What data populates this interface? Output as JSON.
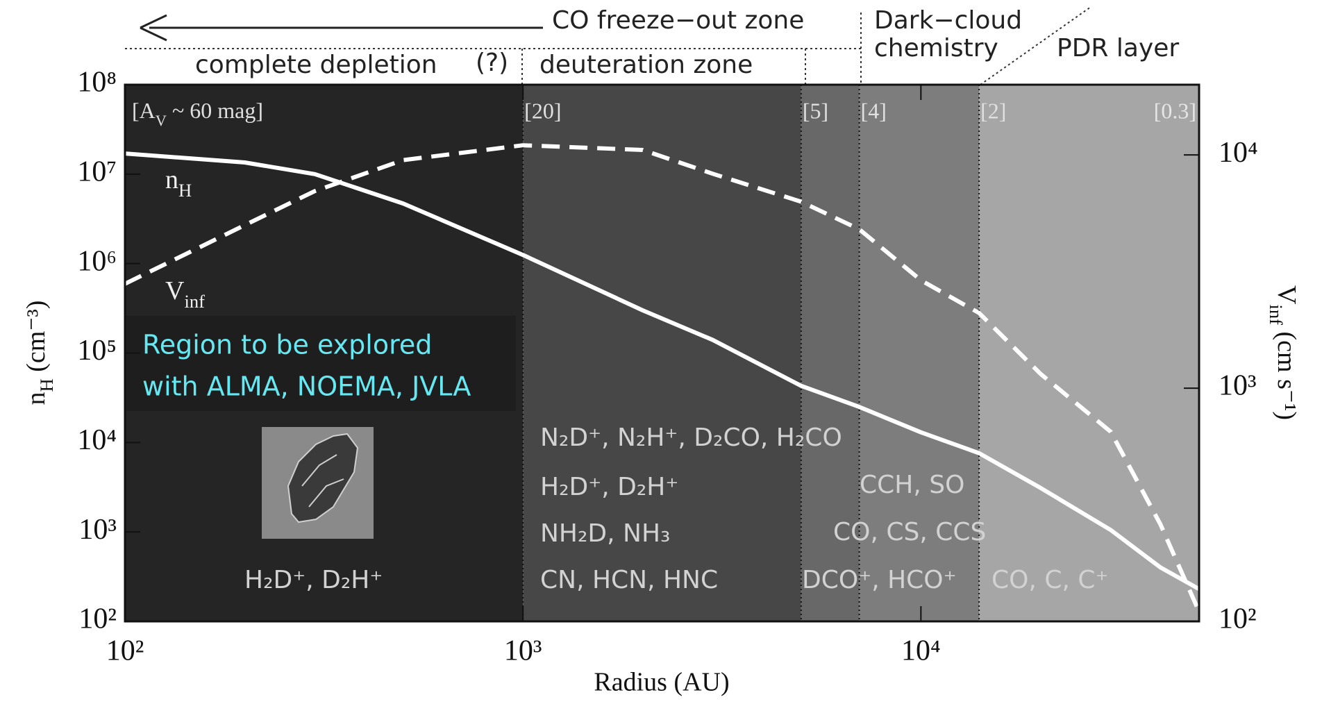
{
  "chart_data": {
    "type": "line",
    "xlabel": "Radius (AU)",
    "ylabel": [
      "n",
      "H",
      " (cm⁻³)"
    ],
    "y2label": [
      "V",
      "inf",
      " (cm s⁻¹)"
    ],
    "log_x": true,
    "log_y": true,
    "xlim": [
      100,
      50000
    ],
    "xticks": [
      {
        "value": 100,
        "label": "10²"
      },
      {
        "value": 1000,
        "label": "10³"
      },
      {
        "value": 10000,
        "label": "10⁴"
      }
    ],
    "ylim": [
      100,
      100000000
    ],
    "yticks": [
      {
        "value": 100,
        "label": "10²"
      },
      {
        "value": 1000,
        "label": "10³"
      },
      {
        "value": 10000,
        "label": "10⁴"
      },
      {
        "value": 100000,
        "label": "10⁵"
      },
      {
        "value": 1000000,
        "label": "10⁶"
      },
      {
        "value": 10000000,
        "label": "10⁷"
      },
      {
        "value": 100000000,
        "label": "10⁸"
      }
    ],
    "y2lim": [
      100,
      20000
    ],
    "y2ticks": [
      {
        "value": 100,
        "label": "10²"
      },
      {
        "value": 1000,
        "label": "10³"
      },
      {
        "value": 10000,
        "label": "10⁴"
      }
    ],
    "x": [
      100,
      200,
      300,
      500,
      1000,
      2000,
      3000,
      5000,
      7000,
      10000,
      14000,
      20000,
      30000,
      40000,
      50000
    ],
    "series": [
      {
        "label": [
          "n",
          "H"
        ],
        "color": "#ffffff",
        "dash": false,
        "values": [
          17000000,
          13500000,
          10000000,
          4700000,
          1250000,
          300000,
          140000,
          43000,
          25000,
          13000,
          7600,
          3100,
          1050,
          400,
          230
        ]
      },
      {
        "label": [
          "V",
          "inf"
        ],
        "color": "#ffffff",
        "dash": true,
        "axis": "y2",
        "values": [
          2800,
          5000,
          7000,
          9500,
          11000,
          10500,
          8300,
          6300,
          4800,
          2900,
          2100,
          1150,
          650,
          260,
          110
        ]
      }
    ],
    "regions": [
      {
        "from": 100,
        "to": 1000,
        "color": "#252525",
        "label": [
          "[A",
          "V",
          " ~ 60 mag]"
        ]
      },
      {
        "from": 1000,
        "to": 5000,
        "color": "#474747",
        "label": "[20]"
      },
      {
        "from": 5000,
        "to": 7000,
        "color": "#686868",
        "label": "[5]"
      },
      {
        "from": 7000,
        "to": 14000,
        "color": "#7d7d7d",
        "label": "[4]"
      },
      {
        "from": 14000,
        "to": 50000,
        "color": "#a6a6a6",
        "label": "[2]"
      }
    ],
    "edge_label": "[0.3]",
    "header": {
      "freeze_out": "CO freeze−out zone",
      "dark_cloud": [
        "Dark−cloud",
        "chemistry"
      ],
      "pdr": "PDR layer",
      "complete_depletion": "complete depletion",
      "question": "(?)",
      "deuteration": "deuteration zone"
    },
    "explore_note": [
      "Region to be explored",
      "with ALMA, NOEMA, JVLA"
    ],
    "molecules": {
      "depletion": [
        "H₂D⁺, D₂H⁺"
      ],
      "deuteration": [
        "N₂D⁺, N₂H⁺, D₂CO, H₂CO",
        "H₂D⁺, D₂H⁺",
        "NH₂D, NH₃",
        "CN, HCN, HNC"
      ],
      "dark_cloud": [
        "CCH, SO",
        "CO, CS, CCS",
        "DCO⁺, HCO⁺"
      ],
      "pdr": [
        "CO, C, C⁺"
      ]
    }
  }
}
